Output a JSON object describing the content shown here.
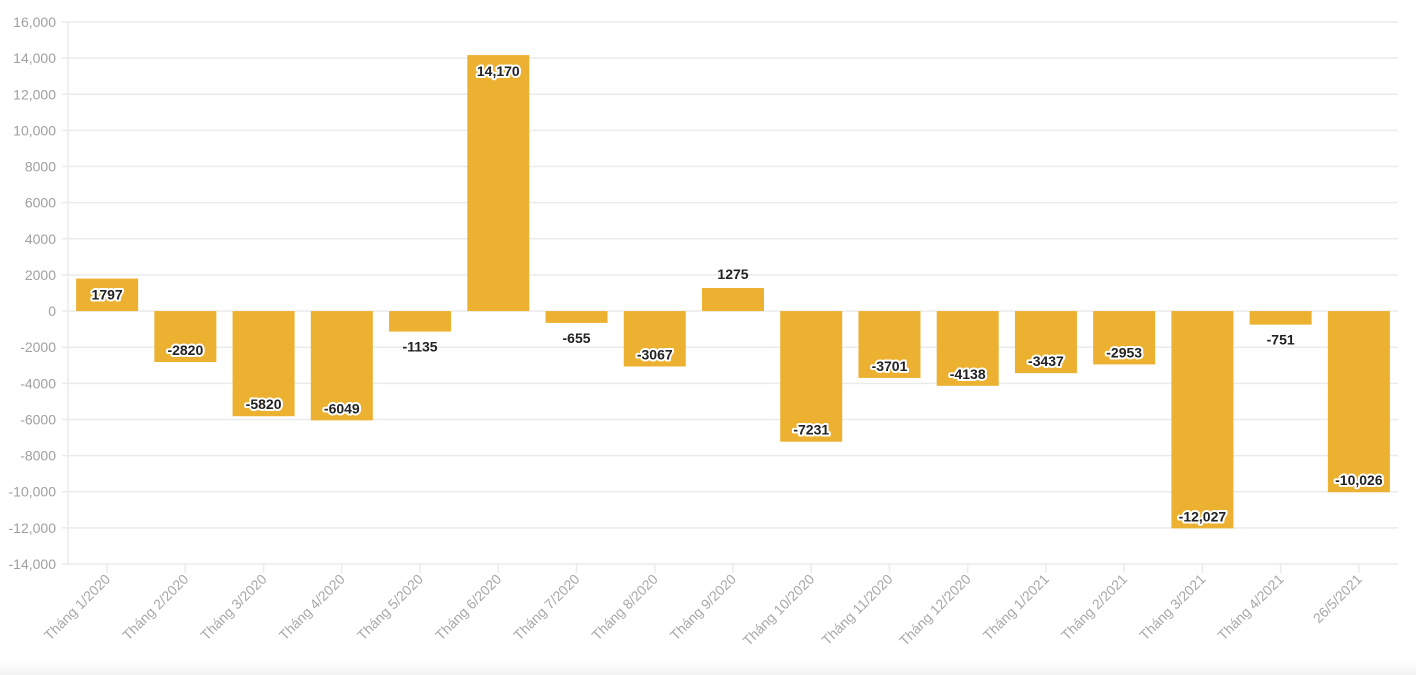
{
  "chart_data": {
    "type": "bar",
    "title": "",
    "xlabel": "",
    "ylabel": "",
    "ylim": [
      -14000,
      16000
    ],
    "yticks": [
      16000,
      14000,
      12000,
      10000,
      8000,
      6000,
      4000,
      2000,
      0,
      -2000,
      -4000,
      -6000,
      -8000,
      -10000,
      -12000,
      -14000
    ],
    "ytick_labels": [
      "16,000",
      "14,000",
      "12,000",
      "10,000",
      "8000",
      "6000",
      "4000",
      "2000",
      "0",
      "-2000",
      "-4000",
      "-6000",
      "-8000",
      "-10,000",
      "-12,000",
      "-14,000"
    ],
    "grid": true,
    "bar_color": "#ecb130",
    "categories": [
      "Tháng 1/2020",
      "Tháng 2/2020",
      "Tháng 3/2020",
      "Tháng 4/2020",
      "Tháng 5/2020",
      "Tháng 6/2020",
      "Tháng 7/2020",
      "Tháng 8/2020",
      "Tháng 9/2020",
      "Tháng 10/2020",
      "Tháng 11/2020",
      "Tháng 12/2020",
      "Tháng 1/2021",
      "Tháng 2/2021",
      "Tháng 3/2021",
      "Tháng 4/2021",
      "26/5/2021"
    ],
    "values": [
      1797,
      -2820,
      -5820,
      -6049,
      -1135,
      14170,
      -655,
      -3067,
      1275,
      -7231,
      -3701,
      -4138,
      -3437,
      -2953,
      -12027,
      -751,
      -10026
    ],
    "data_labels": [
      "1797",
      "-2820",
      "-5820",
      "-6049",
      "-1135",
      "14,170",
      "-655",
      "-3067",
      "1275",
      "-7231",
      "-3701",
      "-4138",
      "-3437",
      "-2953",
      "-12,027",
      "-751",
      "-10,026"
    ]
  }
}
